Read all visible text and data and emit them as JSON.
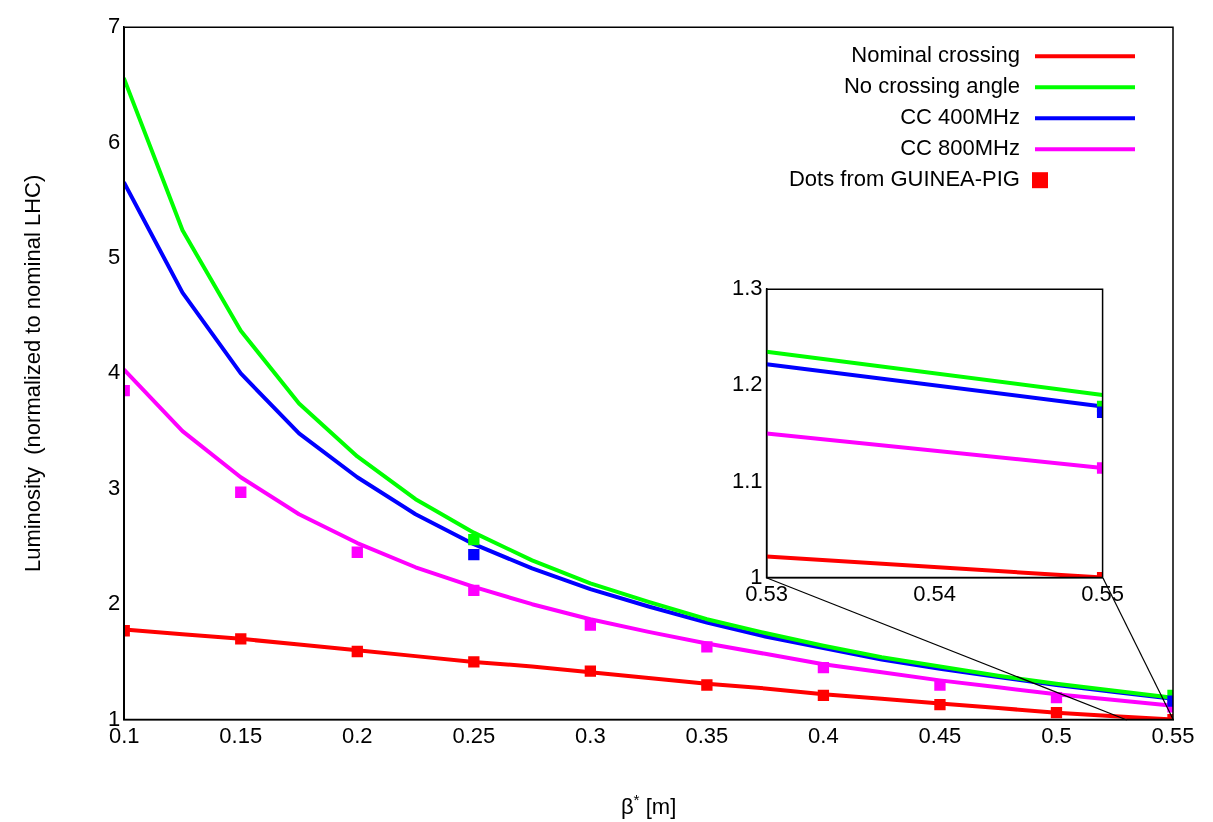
{
  "chart_data": [
    {
      "type": "line",
      "xlabel": "β$^{*}$ [m]",
      "ylabel": "Luminosity  (normalized to nominal LHC)",
      "xlim": [
        0.1,
        0.55
      ],
      "ylim": [
        1,
        7
      ],
      "xticks": [
        0.1,
        0.15,
        0.2,
        0.25,
        0.3,
        0.35,
        0.4,
        0.45,
        0.5,
        0.55
      ],
      "yticks": [
        1,
        2,
        3,
        4,
        5,
        6,
        7
      ],
      "legend": "top right",
      "x": [
        0.1,
        0.125,
        0.15,
        0.175,
        0.2,
        0.225,
        0.25,
        0.275,
        0.3,
        0.325,
        0.35,
        0.375,
        0.4,
        0.425,
        0.45,
        0.475,
        0.5,
        0.525,
        0.55
      ],
      "series": [
        {
          "name": "Nominal crossing",
          "color": "#ff0000",
          "values": [
            1.78,
            1.74,
            1.7,
            1.65,
            1.6,
            1.55,
            1.5,
            1.46,
            1.41,
            1.36,
            1.31,
            1.27,
            1.22,
            1.18,
            1.14,
            1.1,
            1.06,
            1.03,
            1.0
          ]
        },
        {
          "name": "No crossing angle",
          "color": "#00ff00",
          "values": [
            6.55,
            5.24,
            4.37,
            3.74,
            3.28,
            2.91,
            2.62,
            2.38,
            2.18,
            2.02,
            1.87,
            1.75,
            1.64,
            1.54,
            1.46,
            1.38,
            1.31,
            1.25,
            1.19
          ]
        },
        {
          "name": "CC 400MHz",
          "color": "#0000ff",
          "values": [
            5.65,
            4.7,
            4.0,
            3.48,
            3.1,
            2.78,
            2.52,
            2.31,
            2.13,
            1.98,
            1.84,
            1.72,
            1.62,
            1.52,
            1.44,
            1.37,
            1.3,
            1.24,
            1.18
          ]
        },
        {
          "name": "CC 800MHz",
          "color": "#ff00ff",
          "values": [
            4.03,
            3.5,
            3.1,
            2.78,
            2.53,
            2.32,
            2.15,
            2.0,
            1.87,
            1.76,
            1.66,
            1.57,
            1.48,
            1.41,
            1.34,
            1.28,
            1.22,
            1.17,
            1.12
          ]
        },
        {
          "name": "Dots from GUINEA-PIG",
          "type": "scatter",
          "marker": "square",
          "color": "#ff0000",
          "x": [
            0.1,
            0.15,
            0.2,
            0.25,
            0.3,
            0.35,
            0.4,
            0.45,
            0.5,
            0.55,
            0.1,
            0.15,
            0.2,
            0.25,
            0.3,
            0.35,
            0.4,
            0.45,
            0.5,
            0.55,
            0.25,
            0.55,
            0.25,
            0.55
          ],
          "values": [
            1.77,
            1.7,
            1.59,
            1.5,
            1.42,
            1.3,
            1.21,
            1.13,
            1.06,
            1.0,
            3.85,
            2.97,
            2.45,
            2.12,
            1.82,
            1.63,
            1.45,
            1.3,
            1.19,
            1.11,
            2.56,
            1.21,
            2.43,
            1.16
          ],
          "colors": [
            "#ff0000",
            "#ff0000",
            "#ff0000",
            "#ff0000",
            "#ff0000",
            "#ff0000",
            "#ff0000",
            "#ff0000",
            "#ff0000",
            "#ff0000",
            "#ff00ff",
            "#ff00ff",
            "#ff00ff",
            "#ff00ff",
            "#ff00ff",
            "#ff00ff",
            "#ff00ff",
            "#ff00ff",
            "#ff00ff",
            "#ff00ff",
            "#00ff00",
            "#00ff00",
            "#0000ff",
            "#0000ff"
          ]
        }
      ]
    },
    {
      "type": "line",
      "xlim": [
        0.53,
        0.55
      ],
      "ylim": [
        1,
        1.3
      ],
      "xticks": [
        0.53,
        0.54,
        0.55
      ],
      "yticks": [
        1,
        {
          "value": 1.1,
          "label": "1.1"
        },
        {
          "value": 1.2,
          "label": "1.2"
        },
        {
          "value": 1.3,
          "label": "1.3"
        }
      ],
      "x": [
        0.53,
        0.55
      ],
      "series": [
        {
          "color": "#ff0000",
          "values": [
            1.022,
            1.0
          ]
        },
        {
          "color": "#00ff00",
          "values": [
            1.235,
            1.19
          ]
        },
        {
          "color": "#0000ff",
          "values": [
            1.222,
            1.178
          ]
        },
        {
          "color": "#ff00ff",
          "values": [
            1.15,
            1.114
          ]
        },
        {
          "type": "scatter",
          "marker": "square",
          "color": "#ff0000",
          "x": [
            0.55,
            0.55,
            0.55,
            0.55
          ],
          "values": [
            1.0,
            1.114,
            1.178,
            1.172
          ],
          "colors": [
            "#ff0000",
            "#ff00ff",
            "#00ff00",
            "#0000ff"
          ]
        }
      ]
    }
  ]
}
